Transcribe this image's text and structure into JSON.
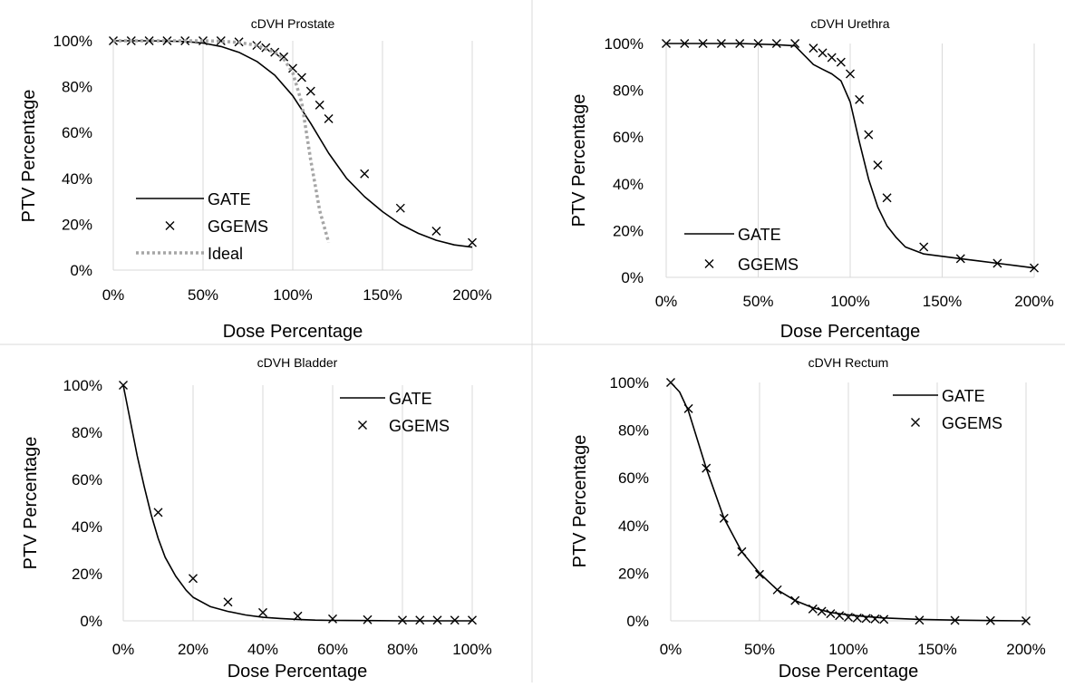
{
  "figure": {
    "panels": [
      {
        "id": "prostate"
      },
      {
        "id": "urethra"
      },
      {
        "id": "bladder"
      },
      {
        "id": "rectum"
      }
    ]
  },
  "chart_data": [
    {
      "type": "line",
      "title": "cDVH Prostate",
      "xlabel": "Dose Percentage",
      "ylabel": "PTV Percentage",
      "xlim": [
        0,
        200
      ],
      "ylim": [
        0,
        100
      ],
      "xticks": [
        0,
        50,
        100,
        150,
        200
      ],
      "yticks": [
        0,
        20,
        40,
        60,
        80,
        100
      ],
      "xtick_labels": [
        "0%",
        "50%",
        "100%",
        "150%",
        "200%"
      ],
      "ytick_labels": [
        "0%",
        "20%",
        "40%",
        "60%",
        "80%",
        "100%"
      ],
      "grid": "vertical",
      "legend_position": "bottom-left",
      "series": [
        {
          "name": "GATE",
          "style": "solid-line",
          "color": "#000000",
          "x": [
            0,
            20,
            40,
            50,
            60,
            70,
            80,
            90,
            100,
            110,
            120,
            130,
            140,
            150,
            160,
            170,
            180,
            190,
            200
          ],
          "y": [
            100,
            100,
            99.7,
            99,
            97.5,
            95,
            91,
            85,
            76,
            64,
            51,
            40,
            32,
            25.5,
            20,
            16,
            13,
            11,
            10
          ]
        },
        {
          "name": "GGEMS",
          "style": "x-marker",
          "color": "#000000",
          "x": [
            0,
            10,
            20,
            30,
            40,
            50,
            60,
            70,
            80,
            85,
            90,
            95,
            100,
            105,
            110,
            115,
            120,
            140,
            160,
            180,
            200
          ],
          "y": [
            100,
            100,
            100,
            100,
            100,
            100,
            100,
            99.5,
            98,
            97,
            95,
            93,
            88,
            84,
            78,
            72,
            66,
            42,
            27,
            17,
            12
          ]
        },
        {
          "name": "Ideal",
          "style": "dotted-line",
          "color": "#a6a6a6",
          "x": [
            0,
            50,
            60,
            70,
            80,
            90,
            95,
            100,
            105,
            110,
            115,
            120
          ],
          "y": [
            100,
            100,
            99.8,
            99.3,
            98,
            95,
            92,
            86,
            73,
            48,
            26,
            12
          ]
        }
      ]
    },
    {
      "type": "line",
      "title": "cDVH Urethra",
      "xlabel": "Dose Percentage",
      "ylabel": "PTV Percentage",
      "xlim": [
        0,
        200
      ],
      "ylim": [
        0,
        100
      ],
      "xticks": [
        0,
        50,
        100,
        150,
        200
      ],
      "yticks": [
        0,
        20,
        40,
        60,
        80,
        100
      ],
      "xtick_labels": [
        "0%",
        "50%",
        "100%",
        "150%",
        "200%"
      ],
      "ytick_labels": [
        "0%",
        "20%",
        "40%",
        "60%",
        "80%",
        "100%"
      ],
      "grid": "vertical",
      "legend_position": "bottom-left",
      "series": [
        {
          "name": "GATE",
          "style": "solid-line",
          "color": "#000000",
          "x": [
            0,
            20,
            40,
            60,
            70,
            75,
            80,
            85,
            90,
            95,
            100,
            105,
            110,
            115,
            120,
            125,
            130,
            140,
            150,
            160,
            170,
            180,
            190,
            200
          ],
          "y": [
            100,
            100,
            100,
            99.5,
            99,
            95,
            91,
            89,
            87,
            84,
            75,
            58,
            42,
            30,
            22,
            17,
            13,
            10,
            9,
            8,
            7,
            6,
            5,
            4
          ]
        },
        {
          "name": "GGEMS",
          "style": "x-marker",
          "color": "#000000",
          "x": [
            0,
            10,
            20,
            30,
            40,
            50,
            60,
            70,
            80,
            85,
            90,
            95,
            100,
            105,
            110,
            115,
            120,
            140,
            160,
            180,
            200
          ],
          "y": [
            100,
            100,
            100,
            100,
            100,
            100,
            100,
            100,
            98,
            96,
            94,
            92,
            87,
            76,
            61,
            48,
            34,
            13,
            8,
            6,
            4
          ]
        }
      ]
    },
    {
      "type": "line",
      "title": "cDVH Bladder",
      "xlabel": "Dose Percentage",
      "ylabel": "PTV Percentage",
      "xlim": [
        0,
        100
      ],
      "ylim": [
        0,
        100
      ],
      "xticks": [
        0,
        20,
        40,
        60,
        80,
        100
      ],
      "yticks": [
        0,
        20,
        40,
        60,
        80,
        100
      ],
      "xtick_labels": [
        "0%",
        "20%",
        "40%",
        "60%",
        "80%",
        "100%"
      ],
      "ytick_labels": [
        "0%",
        "20%",
        "40%",
        "60%",
        "80%",
        "100%"
      ],
      "grid": "vertical",
      "legend_position": "top-right",
      "series": [
        {
          "name": "GATE",
          "style": "solid-line",
          "color": "#000000",
          "x": [
            0,
            2,
            4,
            6,
            8,
            10,
            12,
            15,
            18,
            20,
            25,
            30,
            35,
            40,
            45,
            50,
            55,
            60,
            70,
            80,
            90,
            100
          ],
          "y": [
            100,
            85,
            70,
            57,
            45,
            35,
            27,
            19,
            13,
            10,
            6,
            4,
            2.5,
            1.5,
            1,
            0.6,
            0.3,
            0.2,
            0.1,
            0,
            0,
            0
          ]
        },
        {
          "name": "GGEMS",
          "style": "x-marker",
          "color": "#000000",
          "x": [
            0,
            10,
            20,
            30,
            40,
            50,
            60,
            70,
            80,
            85,
            90,
            95,
            100
          ],
          "y": [
            100,
            46,
            18,
            8,
            3.5,
            2,
            0.8,
            0.5,
            0.3,
            0.3,
            0.3,
            0.3,
            0.3
          ]
        }
      ]
    },
    {
      "type": "line",
      "title": "cDVH Rectum",
      "xlabel": "Dose Percentage",
      "ylabel": "PTV Percentage",
      "xlim": [
        0,
        200
      ],
      "ylim": [
        0,
        100
      ],
      "xticks": [
        0,
        50,
        100,
        150,
        200
      ],
      "yticks": [
        0,
        20,
        40,
        60,
        80,
        100
      ],
      "xtick_labels": [
        "0%",
        "50%",
        "100%",
        "150%",
        "200%"
      ],
      "ytick_labels": [
        "0%",
        "20%",
        "40%",
        "60%",
        "80%",
        "100%"
      ],
      "grid": "vertical",
      "legend_position": "top-right",
      "series": [
        {
          "name": "GATE",
          "style": "solid-line",
          "color": "#000000",
          "x": [
            0,
            5,
            10,
            15,
            20,
            30,
            40,
            50,
            60,
            70,
            80,
            90,
            100,
            110,
            120,
            140,
            160,
            180,
            200
          ],
          "y": [
            100,
            96,
            88,
            76,
            64,
            43,
            29,
            20,
            13,
            8.5,
            5.5,
            3.5,
            2.5,
            1.8,
            1.2,
            0.6,
            0.3,
            0.1,
            0
          ]
        },
        {
          "name": "GGEMS",
          "style": "x-marker",
          "color": "#000000",
          "x": [
            0,
            10,
            20,
            30,
            40,
            50,
            60,
            70,
            80,
            85,
            90,
            95,
            100,
            105,
            110,
            115,
            120,
            140,
            160,
            180,
            200
          ],
          "y": [
            100,
            89,
            64,
            43,
            29,
            19.5,
            13,
            8.5,
            5,
            4,
            3,
            2.2,
            1.5,
            1.2,
            1,
            0.8,
            0.6,
            0.3,
            0.2,
            0.1,
            0
          ]
        }
      ]
    }
  ]
}
